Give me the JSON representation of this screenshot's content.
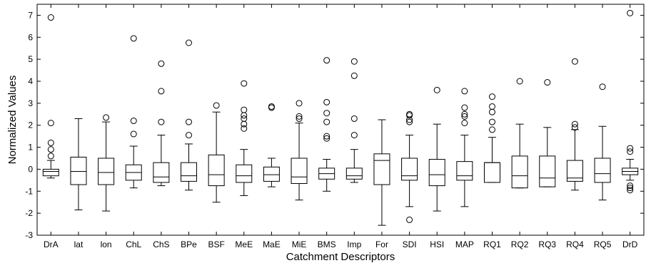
{
  "chart_data": {
    "type": "boxplot",
    "title": "",
    "xlabel": "Catchment Descriptors",
    "ylabel": "Normalized Values",
    "ylim": [
      -3,
      7.5
    ],
    "yticks": [
      -3,
      -2,
      -1,
      0,
      1,
      2,
      3,
      4,
      5,
      6,
      7
    ],
    "ytick_labels": [
      "-3",
      "-2",
      "-1",
      "0",
      "1",
      "2",
      "3",
      "4",
      "5",
      "6",
      "7"
    ],
    "grid": false,
    "legend": "none",
    "colors": {
      "box": "#000000",
      "median": "#000000",
      "outlier": "#000000",
      "background": "#ffffff"
    },
    "categories": [
      "DrA",
      "lat",
      "lon",
      "ChL",
      "ChS",
      "BPe",
      "BSF",
      "MeE",
      "MaE",
      "MiE",
      "BMS",
      "Imp",
      "For",
      "SDI",
      "HSI",
      "MAP",
      "RQ1",
      "RQ2",
      "RQ3",
      "RQ4",
      "RQ5",
      "DrD"
    ],
    "boxes": [
      {
        "name": "DrA",
        "whisker_low": -0.4,
        "q1": -0.3,
        "median": -0.1,
        "q3": 0.0,
        "whisker_high": 0.4,
        "outliers": [
          0.6,
          0.9,
          1.2,
          2.1,
          6.9
        ]
      },
      {
        "name": "lat",
        "whisker_low": -1.85,
        "q1": -0.7,
        "median": -0.1,
        "q3": 0.55,
        "whisker_high": 2.3,
        "outliers": []
      },
      {
        "name": "lon",
        "whisker_low": -1.9,
        "q1": -0.7,
        "median": -0.15,
        "q3": 0.5,
        "whisker_high": 2.15,
        "outliers": [
          2.35
        ]
      },
      {
        "name": "ChL",
        "whisker_low": -0.85,
        "q1": -0.5,
        "median": -0.15,
        "q3": 0.2,
        "whisker_high": 1.05,
        "outliers": [
          1.6,
          2.2,
          5.95
        ]
      },
      {
        "name": "ChS",
        "whisker_low": -0.75,
        "q1": -0.6,
        "median": -0.35,
        "q3": 0.3,
        "whisker_high": 1.55,
        "outliers": [
          2.15,
          3.55,
          4.8
        ]
      },
      {
        "name": "BPe",
        "whisker_low": -0.95,
        "q1": -0.55,
        "median": -0.3,
        "q3": 0.3,
        "whisker_high": 1.15,
        "outliers": [
          1.55,
          2.15,
          5.75
        ]
      },
      {
        "name": "BSF",
        "whisker_low": -1.5,
        "q1": -0.75,
        "median": -0.25,
        "q3": 0.65,
        "whisker_high": 2.6,
        "outliers": [
          2.9
        ]
      },
      {
        "name": "MeE",
        "whisker_low": -1.2,
        "q1": -0.6,
        "median": -0.3,
        "q3": 0.2,
        "whisker_high": 0.9,
        "outliers": [
          1.85,
          2.05,
          2.3,
          2.45,
          2.7,
          3.9
        ]
      },
      {
        "name": "MaE",
        "whisker_low": -0.8,
        "q1": -0.55,
        "median": -0.25,
        "q3": 0.1,
        "whisker_high": 0.5,
        "outliers": [
          2.8,
          2.85
        ]
      },
      {
        "name": "MiE",
        "whisker_low": -1.4,
        "q1": -0.65,
        "median": -0.35,
        "q3": 0.5,
        "whisker_high": 2.1,
        "outliers": [
          2.3,
          2.4,
          3.0
        ]
      },
      {
        "name": "BMS",
        "whisker_low": -1.0,
        "q1": -0.45,
        "median": -0.2,
        "q3": 0.05,
        "whisker_high": 0.45,
        "outliers": [
          1.4,
          1.5,
          2.15,
          2.55,
          3.05,
          4.95
        ]
      },
      {
        "name": "Imp",
        "whisker_low": -0.6,
        "q1": -0.45,
        "median": -0.3,
        "q3": 0.05,
        "whisker_high": 0.9,
        "outliers": [
          1.55,
          2.3,
          4.25,
          4.9
        ]
      },
      {
        "name": "For",
        "whisker_low": -2.55,
        "q1": -0.7,
        "median": 0.4,
        "q3": 0.7,
        "whisker_high": 2.25,
        "outliers": []
      },
      {
        "name": "SDI",
        "whisker_low": -1.7,
        "q1": -0.5,
        "median": -0.3,
        "q3": 0.5,
        "whisker_high": 1.55,
        "outliers": [
          -2.3,
          2.15,
          2.25,
          2.45,
          2.5
        ]
      },
      {
        "name": "HSI",
        "whisker_low": -1.9,
        "q1": -0.75,
        "median": -0.25,
        "q3": 0.45,
        "whisker_high": 2.05,
        "outliers": [
          3.6
        ]
      },
      {
        "name": "MAP",
        "whisker_low": -1.7,
        "q1": -0.5,
        "median": -0.3,
        "q3": 0.35,
        "whisker_high": 1.55,
        "outliers": [
          2.1,
          2.4,
          2.5,
          2.8,
          3.55
        ]
      },
      {
        "name": "RQ1",
        "whisker_low": -0.6,
        "q1": -0.6,
        "median": 0.3,
        "q3": 0.3,
        "whisker_high": 1.45,
        "outliers": [
          1.8,
          2.15,
          2.6,
          2.85,
          3.3
        ]
      },
      {
        "name": "RQ2",
        "whisker_low": -0.85,
        "q1": -0.85,
        "median": -0.3,
        "q3": 0.6,
        "whisker_high": 2.05,
        "outliers": [
          4.0
        ]
      },
      {
        "name": "RQ3",
        "whisker_low": -0.8,
        "q1": -0.8,
        "median": -0.4,
        "q3": 0.6,
        "whisker_high": 1.9,
        "outliers": [
          3.95
        ]
      },
      {
        "name": "RQ4",
        "whisker_low": -0.95,
        "q1": -0.55,
        "median": -0.4,
        "q3": 0.4,
        "whisker_high": 1.8,
        "outliers": [
          1.9,
          2.05,
          4.9
        ]
      },
      {
        "name": "RQ5",
        "whisker_low": -1.4,
        "q1": -0.6,
        "median": -0.2,
        "q3": 0.5,
        "whisker_high": 1.95,
        "outliers": [
          3.75
        ]
      },
      {
        "name": "DrD",
        "whisker_low": -0.5,
        "q1": -0.25,
        "median": -0.1,
        "q3": 0.05,
        "whisker_high": 0.45,
        "outliers": [
          -0.95,
          -0.85,
          -0.75,
          0.8,
          0.95,
          7.1
        ]
      }
    ]
  }
}
